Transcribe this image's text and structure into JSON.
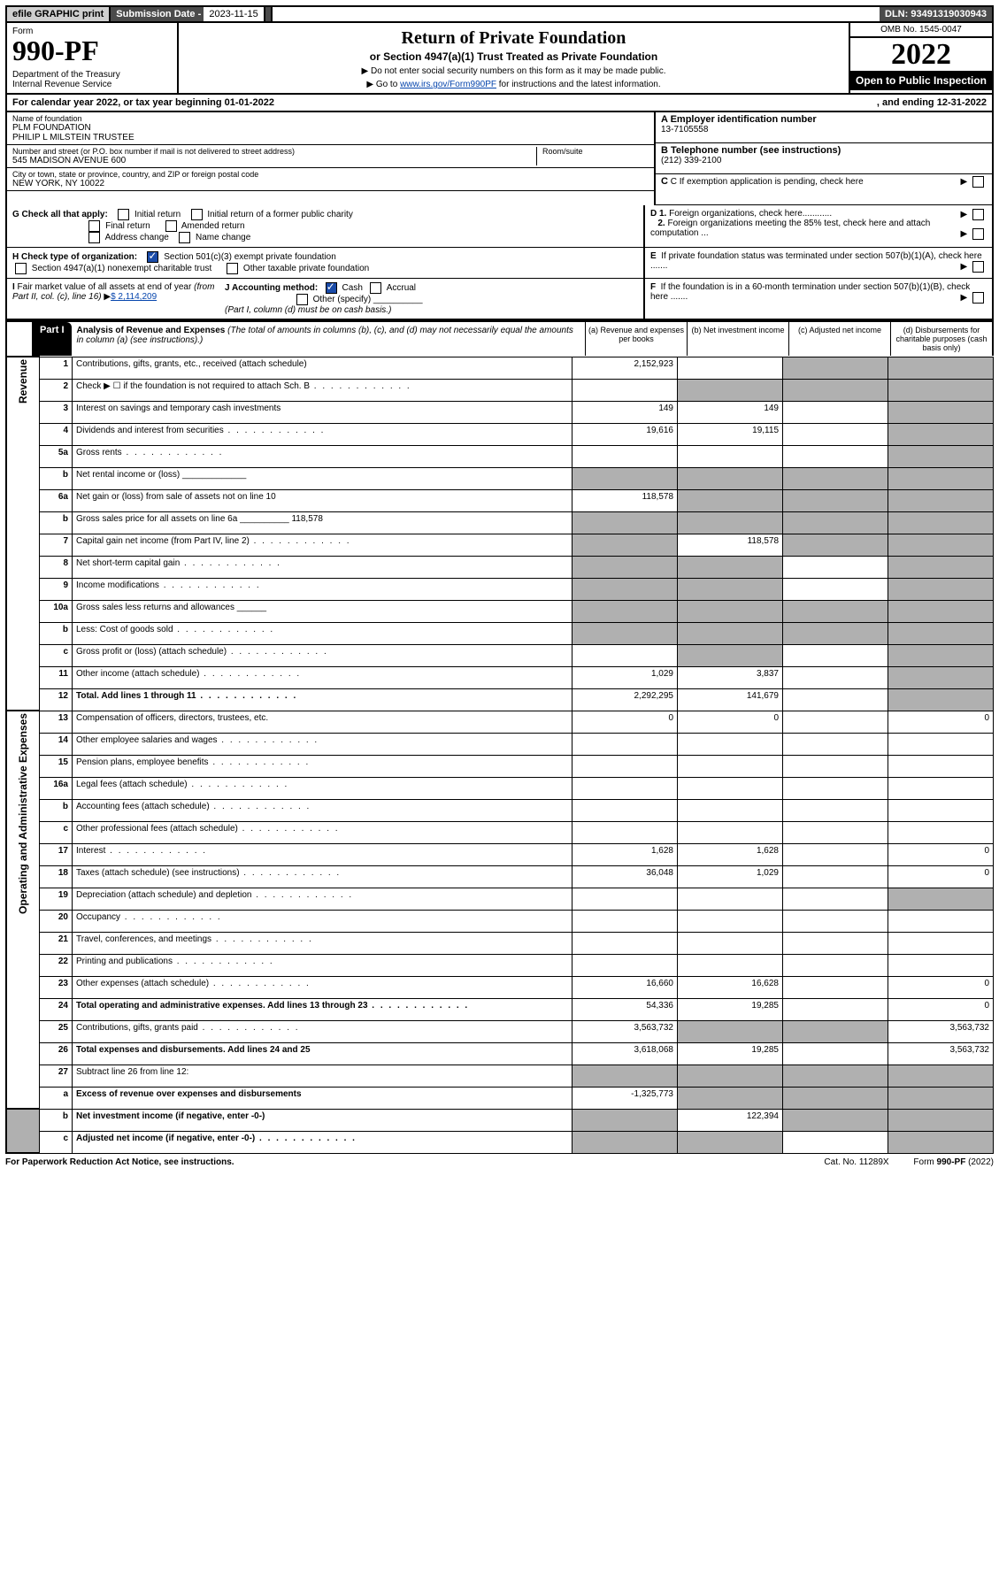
{
  "topbar": {
    "efile": "efile GRAPHIC print",
    "subdate_label": "Submission Date - ",
    "subdate": "2023-11-15",
    "dln": "DLN: 93491319030943"
  },
  "header": {
    "form_label": "Form",
    "form_no": "990-PF",
    "dept": "Department of the Treasury\nInternal Revenue Service",
    "title": "Return of Private Foundation",
    "subtitle": "or Section 4947(a)(1) Trust Treated as Private Foundation",
    "instr1": "▶ Do not enter social security numbers on this form as it may be made public.",
    "instr2a": "▶ Go to ",
    "instr2_link": "www.irs.gov/Form990PF",
    "instr2b": " for instructions and the latest information.",
    "omb": "OMB No. 1545-0047",
    "year": "2022",
    "openpub": "Open to Public Inspection"
  },
  "calyear": {
    "prefix": "For calendar year 2022, or tax year beginning ",
    "begin": "01-01-2022",
    "mid": ", and ending ",
    "end": "12-31-2022"
  },
  "id": {
    "name_label": "Name of foundation",
    "name1": "PLM FOUNDATION",
    "name2": "PHILIP L MILSTEIN TRUSTEE",
    "addr_label": "Number and street (or P.O. box number if mail is not delivered to street address)",
    "addr": "545 MADISON AVENUE 600",
    "room_label": "Room/suite",
    "room": "",
    "city_label": "City or town, state or province, country, and ZIP or foreign postal code",
    "city": "NEW YORK, NY  10022",
    "ein_label": "A Employer identification number",
    "ein": "13-7105558",
    "phone_label": "B Telephone number (see instructions)",
    "phone": "(212) 339-2100",
    "c_label": "C If exemption application is pending, check here",
    "d1": "D 1. Foreign organizations, check here............",
    "d2": "2. Foreign organizations meeting the 85% test, check here and attach computation ...",
    "e": "E  If private foundation status was terminated under section 507(b)(1)(A), check here .......",
    "f": "F  If the foundation is in a 60-month termination under section 507(b)(1)(B), check here .......",
    "g_label": "G Check all that apply:",
    "g_opts": [
      "Initial return",
      "Initial return of a former public charity",
      "Final return",
      "Amended return",
      "Address change",
      "Name change"
    ],
    "h_label": "H Check type of organization:",
    "h1": "Section 501(c)(3) exempt private foundation",
    "h2": "Section 4947(a)(1) nonexempt charitable trust",
    "h3": "Other taxable private foundation",
    "i_label": "I Fair market value of all assets at end of year (from Part II, col. (c), line 16)",
    "i_val": "$  2,114,209",
    "j_label": "J Accounting method:",
    "j_cash": "Cash",
    "j_accr": "Accrual",
    "j_other": "Other (specify)",
    "j_note": "(Part I, column (d) must be on cash basis.)"
  },
  "part1": {
    "hdr": "Part I",
    "title": "Analysis of Revenue and Expenses",
    "note": " (The total of amounts in columns (b), (c), and (d) may not necessarily equal the amounts in column (a) (see instructions).)",
    "cols": {
      "a": "(a)   Revenue and expenses per books",
      "b": "(b)   Net investment income",
      "c": "(c)   Adjusted net income",
      "d": "(d)   Disbursements for charitable purposes (cash basis only)"
    }
  },
  "sidelabels": {
    "rev": "Revenue",
    "exp": "Operating and Administrative Expenses"
  },
  "rows": [
    {
      "n": "1",
      "d": "Contributions, gifts, grants, etc., received (attach schedule)",
      "a": "2,152,923",
      "b": "",
      "c": "g",
      "dd": "g"
    },
    {
      "n": "2",
      "d": "Check ▶ ☐ if the foundation is not required to attach Sch. B",
      "dots": true,
      "a": "",
      "b": "g",
      "c": "g",
      "dd": "g"
    },
    {
      "n": "3",
      "d": "Interest on savings and temporary cash investments",
      "a": "149",
      "b": "149",
      "c": "",
      "dd": "g"
    },
    {
      "n": "4",
      "d": "Dividends and interest from securities",
      "dots": true,
      "a": "19,616",
      "b": "19,115",
      "c": "",
      "dd": "g"
    },
    {
      "n": "5a",
      "d": "Gross rents",
      "dots": true,
      "a": "",
      "b": "",
      "c": "",
      "dd": "g"
    },
    {
      "n": "b",
      "d": "Net rental income or (loss)  _____________",
      "a": "g",
      "b": "g",
      "c": "g",
      "dd": "g"
    },
    {
      "n": "6a",
      "d": "Net gain or (loss) from sale of assets not on line 10",
      "a": "118,578",
      "b": "g",
      "c": "g",
      "dd": "g"
    },
    {
      "n": "b",
      "d": "Gross sales price for all assets on line 6a __________ 118,578",
      "a": "g",
      "b": "g",
      "c": "g",
      "dd": "g"
    },
    {
      "n": "7",
      "d": "Capital gain net income (from Part IV, line 2)",
      "dots": true,
      "a": "g",
      "b": "118,578",
      "c": "g",
      "dd": "g"
    },
    {
      "n": "8",
      "d": "Net short-term capital gain",
      "dots": true,
      "a": "g",
      "b": "g",
      "c": "",
      "dd": "g"
    },
    {
      "n": "9",
      "d": "Income modifications",
      "dots": true,
      "a": "g",
      "b": "g",
      "c": "",
      "dd": "g"
    },
    {
      "n": "10a",
      "d": "Gross sales less returns and allowances  ______",
      "a": "g",
      "b": "g",
      "c": "g",
      "dd": "g"
    },
    {
      "n": "b",
      "d": "Less: Cost of goods sold",
      "dots": true,
      "a": "g",
      "b": "g",
      "c": "g",
      "dd": "g"
    },
    {
      "n": "c",
      "d": "Gross profit or (loss) (attach schedule)",
      "dots": true,
      "a": "",
      "b": "g",
      "c": "",
      "dd": "g"
    },
    {
      "n": "11",
      "d": "Other income (attach schedule)",
      "dots": true,
      "a": "1,029",
      "b": "3,837",
      "c": "",
      "dd": "g"
    },
    {
      "n": "12",
      "d": "Total. Add lines 1 through 11",
      "dots": true,
      "bold": true,
      "a": "2,292,295",
      "b": "141,679",
      "c": "",
      "dd": "g"
    },
    {
      "n": "13",
      "d": "Compensation of officers, directors, trustees, etc.",
      "a": "0",
      "b": "0",
      "c": "",
      "dd": "0"
    },
    {
      "n": "14",
      "d": "Other employee salaries and wages",
      "dots": true,
      "a": "",
      "b": "",
      "c": "",
      "dd": ""
    },
    {
      "n": "15",
      "d": "Pension plans, employee benefits",
      "dots": true,
      "a": "",
      "b": "",
      "c": "",
      "dd": ""
    },
    {
      "n": "16a",
      "d": "Legal fees (attach schedule)",
      "dots": true,
      "a": "",
      "b": "",
      "c": "",
      "dd": ""
    },
    {
      "n": "b",
      "d": "Accounting fees (attach schedule)",
      "dots": true,
      "a": "",
      "b": "",
      "c": "",
      "dd": ""
    },
    {
      "n": "c",
      "d": "Other professional fees (attach schedule)",
      "dots": true,
      "a": "",
      "b": "",
      "c": "",
      "dd": ""
    },
    {
      "n": "17",
      "d": "Interest",
      "dots": true,
      "a": "1,628",
      "b": "1,628",
      "c": "",
      "dd": "0"
    },
    {
      "n": "18",
      "d": "Taxes (attach schedule) (see instructions)",
      "dots": true,
      "a": "36,048",
      "b": "1,029",
      "c": "",
      "dd": "0"
    },
    {
      "n": "19",
      "d": "Depreciation (attach schedule) and depletion",
      "dots": true,
      "a": "",
      "b": "",
      "c": "",
      "dd": "g"
    },
    {
      "n": "20",
      "d": "Occupancy",
      "dots": true,
      "a": "",
      "b": "",
      "c": "",
      "dd": ""
    },
    {
      "n": "21",
      "d": "Travel, conferences, and meetings",
      "dots": true,
      "a": "",
      "b": "",
      "c": "",
      "dd": ""
    },
    {
      "n": "22",
      "d": "Printing and publications",
      "dots": true,
      "a": "",
      "b": "",
      "c": "",
      "dd": ""
    },
    {
      "n": "23",
      "d": "Other expenses (attach schedule)",
      "dots": true,
      "a": "16,660",
      "b": "16,628",
      "c": "",
      "dd": "0"
    },
    {
      "n": "24",
      "d": "Total operating and administrative expenses. Add lines 13 through 23",
      "dots": true,
      "bold": true,
      "a": "54,336",
      "b": "19,285",
      "c": "",
      "dd": "0"
    },
    {
      "n": "25",
      "d": "Contributions, gifts, grants paid",
      "dots": true,
      "a": "3,563,732",
      "b": "g",
      "c": "g",
      "dd": "3,563,732"
    },
    {
      "n": "26",
      "d": "Total expenses and disbursements. Add lines 24 and 25",
      "bold": true,
      "a": "3,618,068",
      "b": "19,285",
      "c": "",
      "dd": "3,563,732"
    },
    {
      "n": "27",
      "d": "Subtract line 26 from line 12:",
      "a": "g",
      "b": "g",
      "c": "g",
      "dd": "g"
    },
    {
      "n": "a",
      "d": "Excess of revenue over expenses and disbursements",
      "bold": true,
      "a": "-1,325,773",
      "b": "g",
      "c": "g",
      "dd": "g"
    },
    {
      "n": "b",
      "d": "Net investment income (if negative, enter -0-)",
      "bold": true,
      "a": "g",
      "b": "122,394",
      "c": "g",
      "dd": "g"
    },
    {
      "n": "c",
      "d": "Adjusted net income (if negative, enter -0-)",
      "bold": true,
      "dots": true,
      "a": "g",
      "b": "g",
      "c": "",
      "dd": "g"
    }
  ],
  "footer": {
    "left": "For Paperwork Reduction Act Notice, see instructions.",
    "mid": "Cat. No. 11289X",
    "right": "Form 990-PF (2022)"
  }
}
